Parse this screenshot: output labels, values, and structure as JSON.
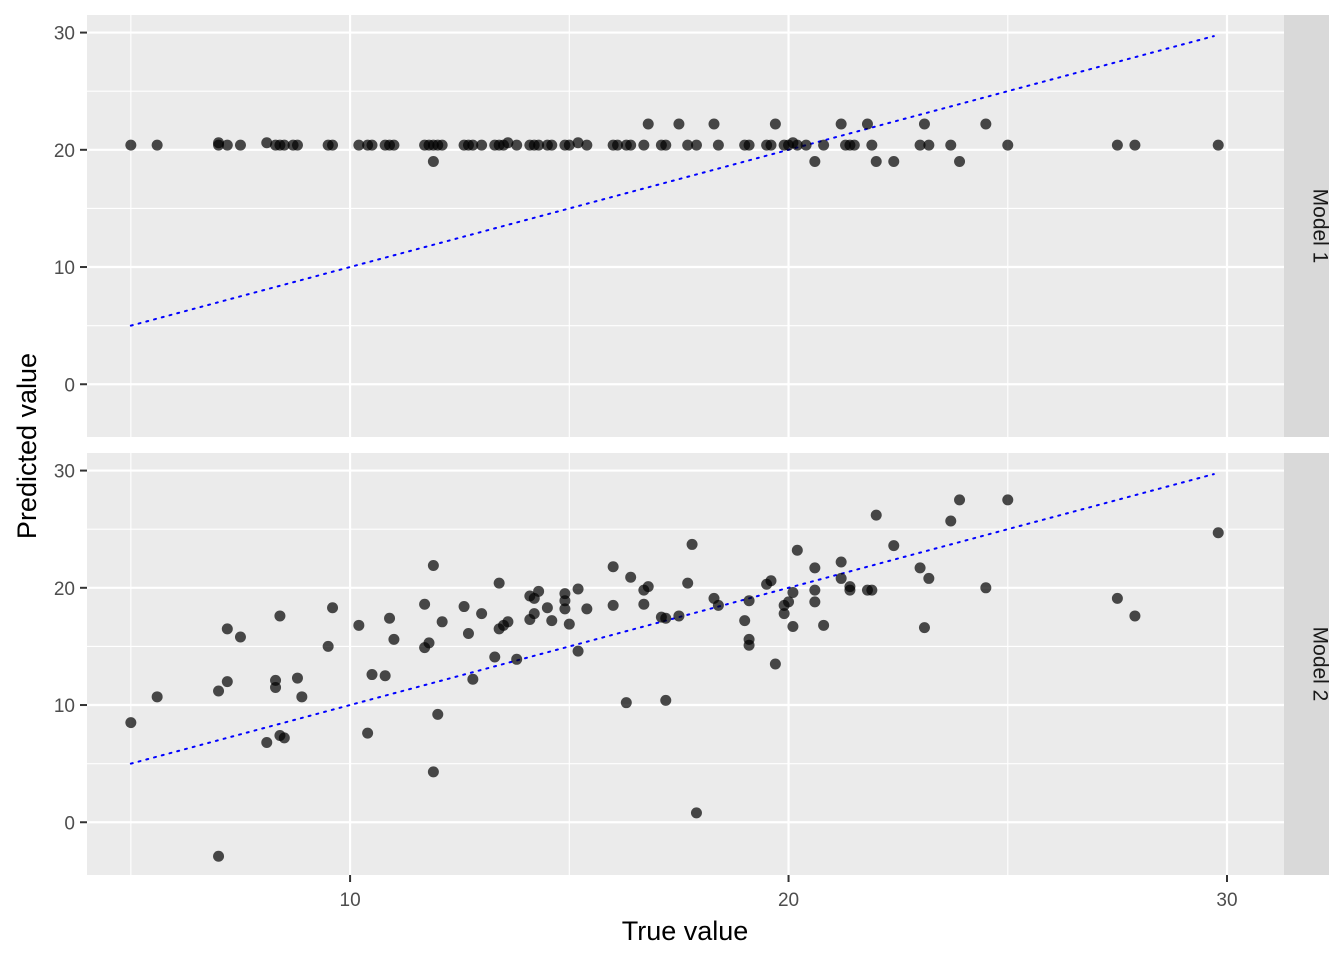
{
  "chart_data": {
    "type": "scatter",
    "xlabel": "True value",
    "ylabel": "Predicted value",
    "xlim": [
      4,
      31.3
    ],
    "ylim": [
      -4.5,
      31.5
    ],
    "x_ticks": [
      10,
      20,
      30
    ],
    "y_ticks": [
      0,
      10,
      20,
      30
    ],
    "reference_line": {
      "style": "dotted",
      "color": "#0000ff",
      "from": [
        5,
        5
      ],
      "to": [
        29.7,
        29.7
      ]
    },
    "point_color": "#000000",
    "point_opacity": 0.7,
    "panels": [
      {
        "name": "Model 1",
        "points": [
          [
            5.0,
            20.4
          ],
          [
            5.6,
            20.4
          ],
          [
            7.0,
            20.4
          ],
          [
            7.0,
            20.6
          ],
          [
            7.2,
            20.4
          ],
          [
            7.5,
            20.4
          ],
          [
            8.1,
            20.6
          ],
          [
            8.3,
            20.4
          ],
          [
            8.4,
            20.4
          ],
          [
            8.5,
            20.4
          ],
          [
            8.7,
            20.4
          ],
          [
            8.8,
            20.4
          ],
          [
            9.5,
            20.4
          ],
          [
            9.6,
            20.4
          ],
          [
            10.2,
            20.4
          ],
          [
            10.4,
            20.4
          ],
          [
            10.5,
            20.4
          ],
          [
            10.8,
            20.4
          ],
          [
            10.9,
            20.4
          ],
          [
            11.0,
            20.4
          ],
          [
            11.7,
            20.4
          ],
          [
            11.8,
            20.4
          ],
          [
            11.9,
            20.4
          ],
          [
            11.9,
            19.0
          ],
          [
            12.0,
            20.4
          ],
          [
            12.1,
            20.4
          ],
          [
            12.6,
            20.4
          ],
          [
            12.7,
            20.4
          ],
          [
            12.8,
            20.4
          ],
          [
            13.0,
            20.4
          ],
          [
            13.3,
            20.4
          ],
          [
            13.4,
            20.4
          ],
          [
            13.5,
            20.4
          ],
          [
            13.6,
            20.6
          ],
          [
            13.8,
            20.4
          ],
          [
            14.1,
            20.4
          ],
          [
            14.2,
            20.4
          ],
          [
            14.3,
            20.4
          ],
          [
            14.5,
            20.4
          ],
          [
            14.6,
            20.4
          ],
          [
            14.9,
            20.4
          ],
          [
            15.0,
            20.4
          ],
          [
            15.2,
            20.6
          ],
          [
            15.4,
            20.4
          ],
          [
            16.0,
            20.4
          ],
          [
            16.1,
            20.4
          ],
          [
            16.3,
            20.4
          ],
          [
            16.4,
            20.4
          ],
          [
            16.7,
            20.4
          ],
          [
            16.8,
            22.2
          ],
          [
            17.1,
            20.4
          ],
          [
            17.2,
            20.4
          ],
          [
            17.5,
            22.2
          ],
          [
            17.7,
            20.4
          ],
          [
            17.9,
            20.4
          ],
          [
            18.3,
            22.2
          ],
          [
            18.4,
            20.4
          ],
          [
            19.0,
            20.4
          ],
          [
            19.1,
            20.4
          ],
          [
            19.5,
            20.4
          ],
          [
            19.6,
            20.4
          ],
          [
            19.7,
            22.2
          ],
          [
            19.9,
            20.4
          ],
          [
            20.0,
            20.4
          ],
          [
            20.1,
            20.6
          ],
          [
            20.2,
            20.4
          ],
          [
            20.4,
            20.4
          ],
          [
            20.6,
            19.0
          ],
          [
            20.8,
            20.4
          ],
          [
            21.2,
            22.2
          ],
          [
            21.3,
            20.4
          ],
          [
            21.4,
            20.4
          ],
          [
            21.5,
            20.4
          ],
          [
            21.8,
            22.2
          ],
          [
            21.9,
            20.4
          ],
          [
            22.0,
            19.0
          ],
          [
            22.4,
            19.0
          ],
          [
            23.0,
            20.4
          ],
          [
            23.1,
            22.2
          ],
          [
            23.2,
            20.4
          ],
          [
            23.7,
            20.4
          ],
          [
            23.9,
            19.0
          ],
          [
            24.5,
            22.2
          ],
          [
            25.0,
            20.4
          ],
          [
            27.5,
            20.4
          ],
          [
            27.9,
            20.4
          ],
          [
            29.8,
            20.4
          ]
        ]
      },
      {
        "name": "Model 2",
        "points": [
          [
            5.0,
            8.5
          ],
          [
            5.6,
            10.7
          ],
          [
            7.0,
            11.2
          ],
          [
            7.0,
            -2.9
          ],
          [
            7.2,
            16.5
          ],
          [
            7.2,
            12.0
          ],
          [
            7.5,
            15.8
          ],
          [
            8.1,
            6.8
          ],
          [
            8.3,
            12.1
          ],
          [
            8.3,
            11.5
          ],
          [
            8.4,
            17.6
          ],
          [
            8.4,
            7.4
          ],
          [
            8.5,
            7.2
          ],
          [
            8.8,
            12.3
          ],
          [
            8.9,
            10.7
          ],
          [
            9.5,
            15.0
          ],
          [
            9.6,
            18.3
          ],
          [
            10.2,
            16.8
          ],
          [
            10.4,
            7.6
          ],
          [
            10.5,
            12.6
          ],
          [
            10.8,
            12.5
          ],
          [
            10.9,
            17.4
          ],
          [
            11.0,
            15.6
          ],
          [
            11.7,
            18.6
          ],
          [
            11.7,
            14.9
          ],
          [
            11.8,
            15.3
          ],
          [
            11.9,
            21.9
          ],
          [
            11.9,
            4.3
          ],
          [
            12.0,
            9.2
          ],
          [
            12.1,
            17.1
          ],
          [
            12.6,
            18.4
          ],
          [
            12.7,
            16.1
          ],
          [
            12.8,
            12.2
          ],
          [
            13.0,
            17.8
          ],
          [
            13.3,
            14.1
          ],
          [
            13.4,
            20.4
          ],
          [
            13.4,
            16.5
          ],
          [
            13.5,
            16.8
          ],
          [
            13.6,
            17.1
          ],
          [
            13.8,
            13.9
          ],
          [
            14.1,
            17.3
          ],
          [
            14.1,
            19.3
          ],
          [
            14.2,
            19.1
          ],
          [
            14.2,
            17.8
          ],
          [
            14.3,
            19.7
          ],
          [
            14.5,
            18.3
          ],
          [
            14.6,
            17.2
          ],
          [
            14.9,
            19.5
          ],
          [
            14.9,
            18.9
          ],
          [
            14.9,
            18.2
          ],
          [
            15.0,
            16.9
          ],
          [
            15.2,
            14.6
          ],
          [
            15.2,
            19.9
          ],
          [
            15.4,
            18.2
          ],
          [
            16.0,
            21.8
          ],
          [
            16.0,
            18.5
          ],
          [
            16.3,
            10.2
          ],
          [
            16.4,
            20.9
          ],
          [
            16.7,
            19.8
          ],
          [
            16.7,
            18.6
          ],
          [
            16.8,
            20.1
          ],
          [
            17.1,
            17.5
          ],
          [
            17.2,
            10.4
          ],
          [
            17.2,
            17.4
          ],
          [
            17.5,
            17.6
          ],
          [
            17.7,
            20.4
          ],
          [
            17.8,
            23.7
          ],
          [
            17.9,
            0.8
          ],
          [
            18.3,
            19.1
          ],
          [
            18.4,
            18.5
          ],
          [
            19.0,
            17.2
          ],
          [
            19.1,
            18.9
          ],
          [
            19.1,
            15.6
          ],
          [
            19.1,
            15.1
          ],
          [
            19.5,
            20.3
          ],
          [
            19.6,
            20.6
          ],
          [
            19.7,
            13.5
          ],
          [
            19.9,
            18.5
          ],
          [
            19.9,
            17.8
          ],
          [
            20.0,
            18.8
          ],
          [
            20.1,
            16.7
          ],
          [
            20.1,
            19.6
          ],
          [
            20.2,
            23.2
          ],
          [
            20.6,
            21.7
          ],
          [
            20.6,
            19.8
          ],
          [
            20.6,
            18.8
          ],
          [
            20.8,
            16.8
          ],
          [
            21.2,
            22.2
          ],
          [
            21.2,
            20.8
          ],
          [
            21.4,
            20.1
          ],
          [
            21.4,
            19.8
          ],
          [
            21.8,
            19.8
          ],
          [
            21.9,
            19.8
          ],
          [
            22.0,
            26.2
          ],
          [
            22.4,
            23.6
          ],
          [
            23.0,
            21.7
          ],
          [
            23.1,
            16.6
          ],
          [
            23.2,
            20.8
          ],
          [
            23.7,
            25.7
          ],
          [
            23.9,
            27.5
          ],
          [
            24.5,
            20.0
          ],
          [
            25.0,
            27.5
          ],
          [
            27.5,
            19.1
          ],
          [
            27.9,
            17.6
          ],
          [
            29.8,
            24.7
          ]
        ]
      }
    ]
  }
}
